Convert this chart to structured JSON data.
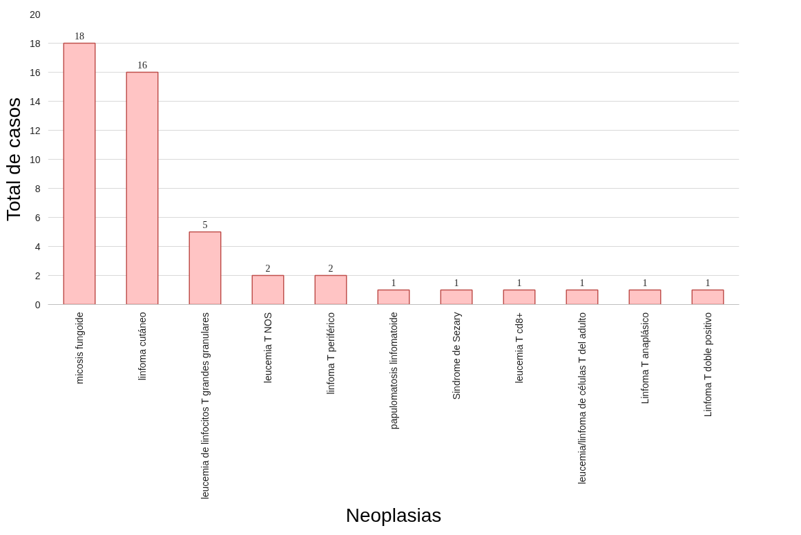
{
  "chart_data": {
    "type": "bar",
    "xlabel": "Neoplasias",
    "ylabel": "Total de casos",
    "categories": [
      "micosis fungoide",
      "linfoma cutáneo",
      "leucemia de linfocitos T grandes granulares",
      "leucemia T NOS",
      "linfoma T periférico",
      "papulomatosis linfomatoide",
      "Sindrome de Sezary",
      "leucemia T cd8+",
      "leucemia/linfoma de células T del adulto",
      "Linfoma T anaplásico",
      "Linfoma T doble positivo"
    ],
    "values": [
      18,
      16,
      5,
      2,
      2,
      1,
      1,
      1,
      1,
      1,
      1
    ],
    "color": "#ffc4c4",
    "ylim": [
      0,
      20
    ],
    "yticks": [
      0,
      2,
      4,
      6,
      8,
      10,
      12,
      14,
      16,
      18,
      20
    ],
    "grid": "y",
    "data_labels": true
  }
}
